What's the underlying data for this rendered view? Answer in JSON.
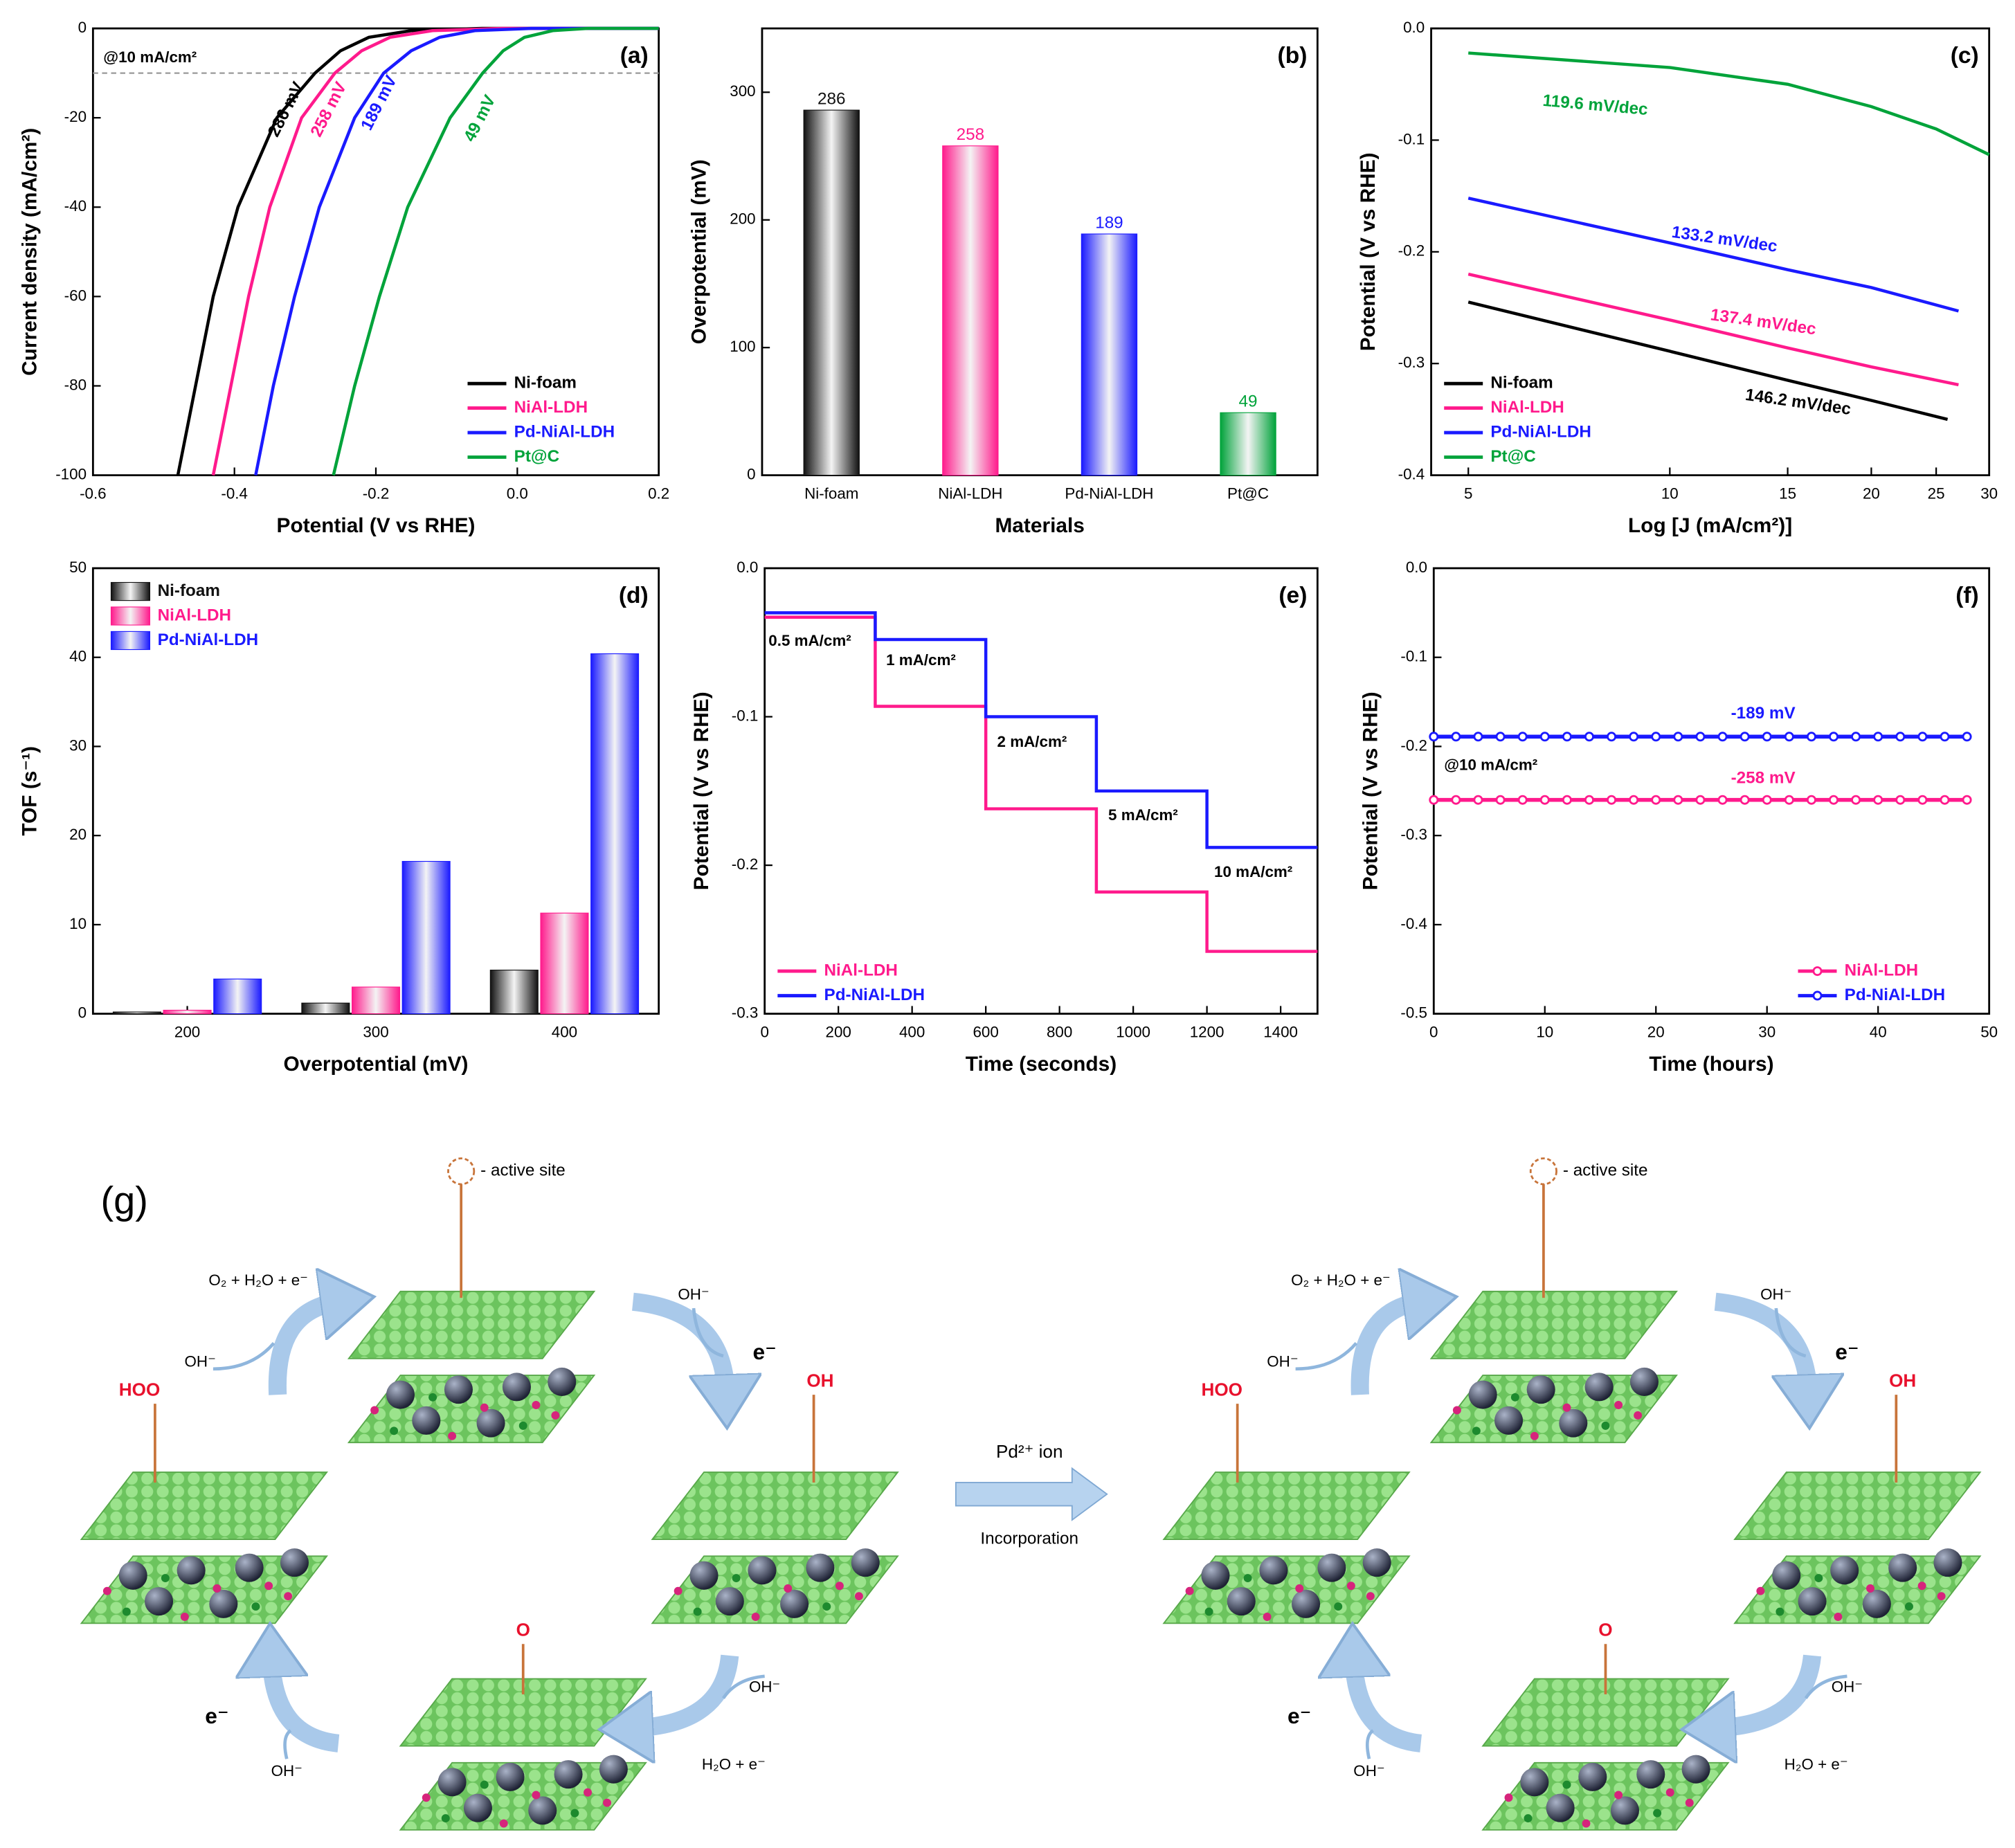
{
  "chart_data": [
    {
      "type": "line",
      "label": "(a)",
      "xlabel": "Potential (V vs RHE)",
      "ylabel": "Current density (mA/cm²)",
      "xlim": [
        -0.6,
        0.2
      ],
      "xticks": [
        -0.6,
        -0.4,
        -0.2,
        {
          "value": 0,
          "label": "0.0"
        },
        0.2
      ],
      "ylim": [
        -100,
        0
      ],
      "yticks": [
        -100,
        -80,
        -60,
        -40,
        -20,
        0
      ],
      "ref_line": -10,
      "legend": "lower right",
      "annotations": [
        {
          "text": "@10 mA/cm²",
          "color": "#000000"
        },
        {
          "text": "286 mV",
          "color": "#000000"
        },
        {
          "text": "258 mV",
          "color": "#ff1a8c"
        },
        {
          "text": "189 mV",
          "color": "#1a1aff"
        },
        {
          "text": "49 mV",
          "color": "#00a33a"
        }
      ],
      "series": [
        {
          "name": "Ni-foam",
          "color": "#000000",
          "x": [
            -0.48,
            -0.455,
            -0.43,
            -0.395,
            -0.34,
            -0.286,
            -0.25,
            -0.21,
            -0.15,
            -0.05,
            0.2
          ],
          "values": [
            -100,
            -80,
            -60,
            -40,
            -20,
            -10,
            -5,
            -2,
            -0.5,
            0,
            0
          ]
        },
        {
          "name": "NiAl-LDH",
          "color": "#ff1a8c",
          "x": [
            -0.43,
            -0.405,
            -0.38,
            -0.35,
            -0.305,
            -0.258,
            -0.22,
            -0.18,
            -0.12,
            -0.02,
            0.2
          ],
          "values": [
            -100,
            -80,
            -60,
            -40,
            -20,
            -10,
            -5,
            -2,
            -0.5,
            0,
            0
          ]
        },
        {
          "name": "Pd-NiAl-LDH",
          "color": "#1a1aff",
          "x": [
            -0.37,
            -0.345,
            -0.315,
            -0.28,
            -0.23,
            -0.189,
            -0.15,
            -0.11,
            -0.06,
            0.02,
            0.2
          ],
          "values": [
            -100,
            -80,
            -60,
            -40,
            -20,
            -10,
            -5,
            -2,
            -0.5,
            0,
            0
          ]
        },
        {
          "name": "Pt@C",
          "color": "#00a33a",
          "x": [
            -0.26,
            -0.23,
            -0.195,
            -0.155,
            -0.095,
            -0.049,
            -0.02,
            0.01,
            0.05,
            0.1,
            0.2
          ],
          "values": [
            -100,
            -80,
            -60,
            -40,
            -20,
            -10,
            -5,
            -2,
            -0.5,
            0,
            0
          ]
        }
      ]
    },
    {
      "type": "bar",
      "label": "(b)",
      "xlabel": "Materials",
      "ylabel": "Overpotential (mV)",
      "categories": [
        "Ni-foam",
        "NiAl-LDH",
        "Pd-NiAl-LDH",
        "Pt@C"
      ],
      "values": [
        286,
        258,
        189,
        49
      ],
      "colors": [
        "#111111",
        "#ff1a8c",
        "#1a1aff",
        "#00a33a"
      ],
      "ylim": [
        0,
        350
      ],
      "yticks": [
        0,
        100,
        200,
        300
      ]
    },
    {
      "type": "line",
      "label": "(c)",
      "xlabel": "Log [J (mA/cm²)]",
      "ylabel": "Potential (V vs RHE)",
      "xlog": true,
      "xlim": [
        4.4,
        30
      ],
      "xticks": [
        5,
        10,
        15,
        20,
        25,
        30
      ],
      "ylim": [
        -0.4,
        0
      ],
      "yticks": [
        -0.4,
        -0.3,
        -0.2,
        -0.1,
        {
          "value": 0,
          "label": "0.0"
        }
      ],
      "legend": "lower left",
      "annotations": [
        {
          "text": "119.6 mV/dec",
          "color": "#00a33a"
        },
        {
          "text": "133.2 mV/dec",
          "color": "#1a1aff"
        },
        {
          "text": "137.4 mV/dec",
          "color": "#ff1a8c"
        },
        {
          "text": "146.2 mV/dec",
          "color": "#000000"
        }
      ],
      "series": [
        {
          "name": "Ni-foam",
          "color": "#000000",
          "x": [
            5,
            10,
            15,
            20,
            26
          ],
          "values": [
            -0.245,
            -0.289,
            -0.315,
            -0.333,
            -0.35
          ]
        },
        {
          "name": "NiAl-LDH",
          "color": "#ff1a8c",
          "x": [
            5,
            10,
            15,
            20,
            27
          ],
          "values": [
            -0.22,
            -0.261,
            -0.286,
            -0.303,
            -0.319
          ]
        },
        {
          "name": "Pd-NiAl-LDH",
          "color": "#1a1aff",
          "x": [
            5,
            10,
            15,
            20,
            27
          ],
          "values": [
            -0.152,
            -0.192,
            -0.216,
            -0.232,
            -0.253
          ]
        },
        {
          "name": "Pt@C",
          "color": "#00a33a",
          "x": [
            5,
            10,
            15,
            20,
            25,
            30
          ],
          "values": [
            -0.022,
            -0.035,
            -0.05,
            -0.07,
            -0.09,
            -0.113
          ]
        }
      ]
    },
    {
      "type": "bar",
      "label": "(d)",
      "xlabel": "Overpotential (mV)",
      "ylabel": "TOF (s⁻¹)",
      "categories": [
        "200",
        "300",
        "400"
      ],
      "ylim": [
        0,
        50
      ],
      "yticks": [
        0,
        10,
        20,
        30,
        40,
        50
      ],
      "legend": "upper left",
      "series": [
        {
          "name": "Ni-foam",
          "color": "#111111",
          "values": [
            0.2,
            1.2,
            4.9
          ]
        },
        {
          "name": "NiAl-LDH",
          "color": "#ff1a8c",
          "values": [
            0.4,
            3,
            11.3
          ]
        },
        {
          "name": "Pd-NiAl-LDH",
          "color": "#1a1aff",
          "values": [
            3.9,
            17.1,
            40.4
          ]
        }
      ]
    },
    {
      "type": "line",
      "label": "(e)",
      "xlabel": "Time (seconds)",
      "ylabel": "Potential (V vs RHE)",
      "xlim": [
        0,
        1500
      ],
      "xticks": [
        0,
        200,
        400,
        600,
        800,
        1000,
        1200,
        1400
      ],
      "ylim": [
        -0.3,
        0
      ],
      "yticks": [
        -0.3,
        -0.2,
        -0.1,
        {
          "value": 0,
          "label": "0.0"
        }
      ],
      "legend": "lower left",
      "annotations": [
        {
          "text": "0.5 mA/cm²",
          "color": "#000000"
        },
        {
          "text": "1 mA/cm²",
          "color": "#000000"
        },
        {
          "text": "2 mA/cm²",
          "color": "#000000"
        },
        {
          "text": "5 mA/cm²",
          "color": "#000000"
        },
        {
          "text": "10 mA/cm²",
          "color": "#000000"
        }
      ],
      "series": [
        {
          "name": "NiAl-LDH",
          "color": "#ff1a8c",
          "x": [
            0,
            300,
            300,
            600,
            600,
            900,
            900,
            1200,
            1200,
            1500
          ],
          "values": [
            -0.033,
            -0.033,
            -0.093,
            -0.093,
            -0.162,
            -0.162,
            -0.218,
            -0.218,
            -0.258,
            -0.258
          ]
        },
        {
          "name": "Pd-NiAl-LDH",
          "color": "#1a1aff",
          "x": [
            0,
            300,
            300,
            600,
            600,
            900,
            900,
            1200,
            1200,
            1500
          ],
          "values": [
            -0.03,
            -0.03,
            -0.048,
            -0.048,
            -0.1,
            -0.1,
            -0.15,
            -0.15,
            -0.188,
            -0.188
          ]
        }
      ]
    },
    {
      "type": "line",
      "label": "(f)",
      "xlabel": "Time (hours)",
      "ylabel": "Potential (V vs RHE)",
      "xlim": [
        0,
        50
      ],
      "xticks": [
        0,
        10,
        20,
        30,
        40,
        50
      ],
      "ylim": [
        -0.5,
        0
      ],
      "yticks": [
        -0.5,
        -0.4,
        -0.3,
        -0.2,
        -0.1,
        {
          "value": 0,
          "label": "0.0"
        }
      ],
      "legend": "lower right",
      "markers": true,
      "annotations": [
        {
          "text": "-189 mV",
          "color": "#1a1aff"
        },
        {
          "text": "-258 mV",
          "color": "#ff1a8c"
        },
        {
          "text": "@10 mA/cm²",
          "color": "#000000"
        }
      ],
      "series": [
        {
          "name": "NiAl-LDH",
          "color": "#ff1a8c",
          "x": [
            0,
            2,
            4,
            6,
            8,
            10,
            12,
            14,
            16,
            18,
            20,
            22,
            24,
            26,
            28,
            30,
            32,
            34,
            36,
            38,
            40,
            42,
            44,
            46,
            48
          ],
          "values": [
            -0.26,
            -0.26,
            -0.26,
            -0.26,
            -0.26,
            -0.26,
            -0.26,
            -0.26,
            -0.26,
            -0.26,
            -0.26,
            -0.26,
            -0.26,
            -0.26,
            -0.26,
            -0.26,
            -0.26,
            -0.26,
            -0.26,
            -0.26,
            -0.26,
            -0.26,
            -0.26,
            -0.26,
            -0.26
          ]
        },
        {
          "name": "Pd-NiAl-LDH",
          "color": "#1a1aff",
          "x": [
            0,
            2,
            4,
            6,
            8,
            10,
            12,
            14,
            16,
            18,
            20,
            22,
            24,
            26,
            28,
            30,
            32,
            34,
            36,
            38,
            40,
            42,
            44,
            46,
            48
          ],
          "values": [
            -0.189,
            -0.189,
            -0.189,
            -0.189,
            -0.189,
            -0.189,
            -0.189,
            -0.189,
            -0.189,
            -0.189,
            -0.189,
            -0.189,
            -0.189,
            -0.189,
            -0.189,
            -0.189,
            -0.189,
            -0.189,
            -0.189,
            -0.189,
            -0.189,
            -0.189,
            -0.189,
            -0.189,
            -0.189
          ]
        }
      ]
    }
  ],
  "diagram": {
    "label": "(g)",
    "arrow_top": "Pd²⁺ ion",
    "arrow_bottom": "Incorporation",
    "cycles": [
      {
        "labels": [
          "- active site",
          "O₂ + H₂O + e⁻",
          "OH⁻",
          "OH⁻",
          "e⁻",
          "HOO",
          "OH",
          "O",
          "e⁻",
          "OH⁻",
          "OH⁻",
          "H₂O + e⁻"
        ]
      },
      {
        "labels": [
          "- active site",
          "O₂ + H₂O + e⁻",
          "OH⁻",
          "OH⁻",
          "e⁻",
          "HOO",
          "OH",
          "O",
          "e⁻",
          "OH⁻",
          "OH⁻",
          "H₂O + e⁻"
        ]
      }
    ]
  }
}
